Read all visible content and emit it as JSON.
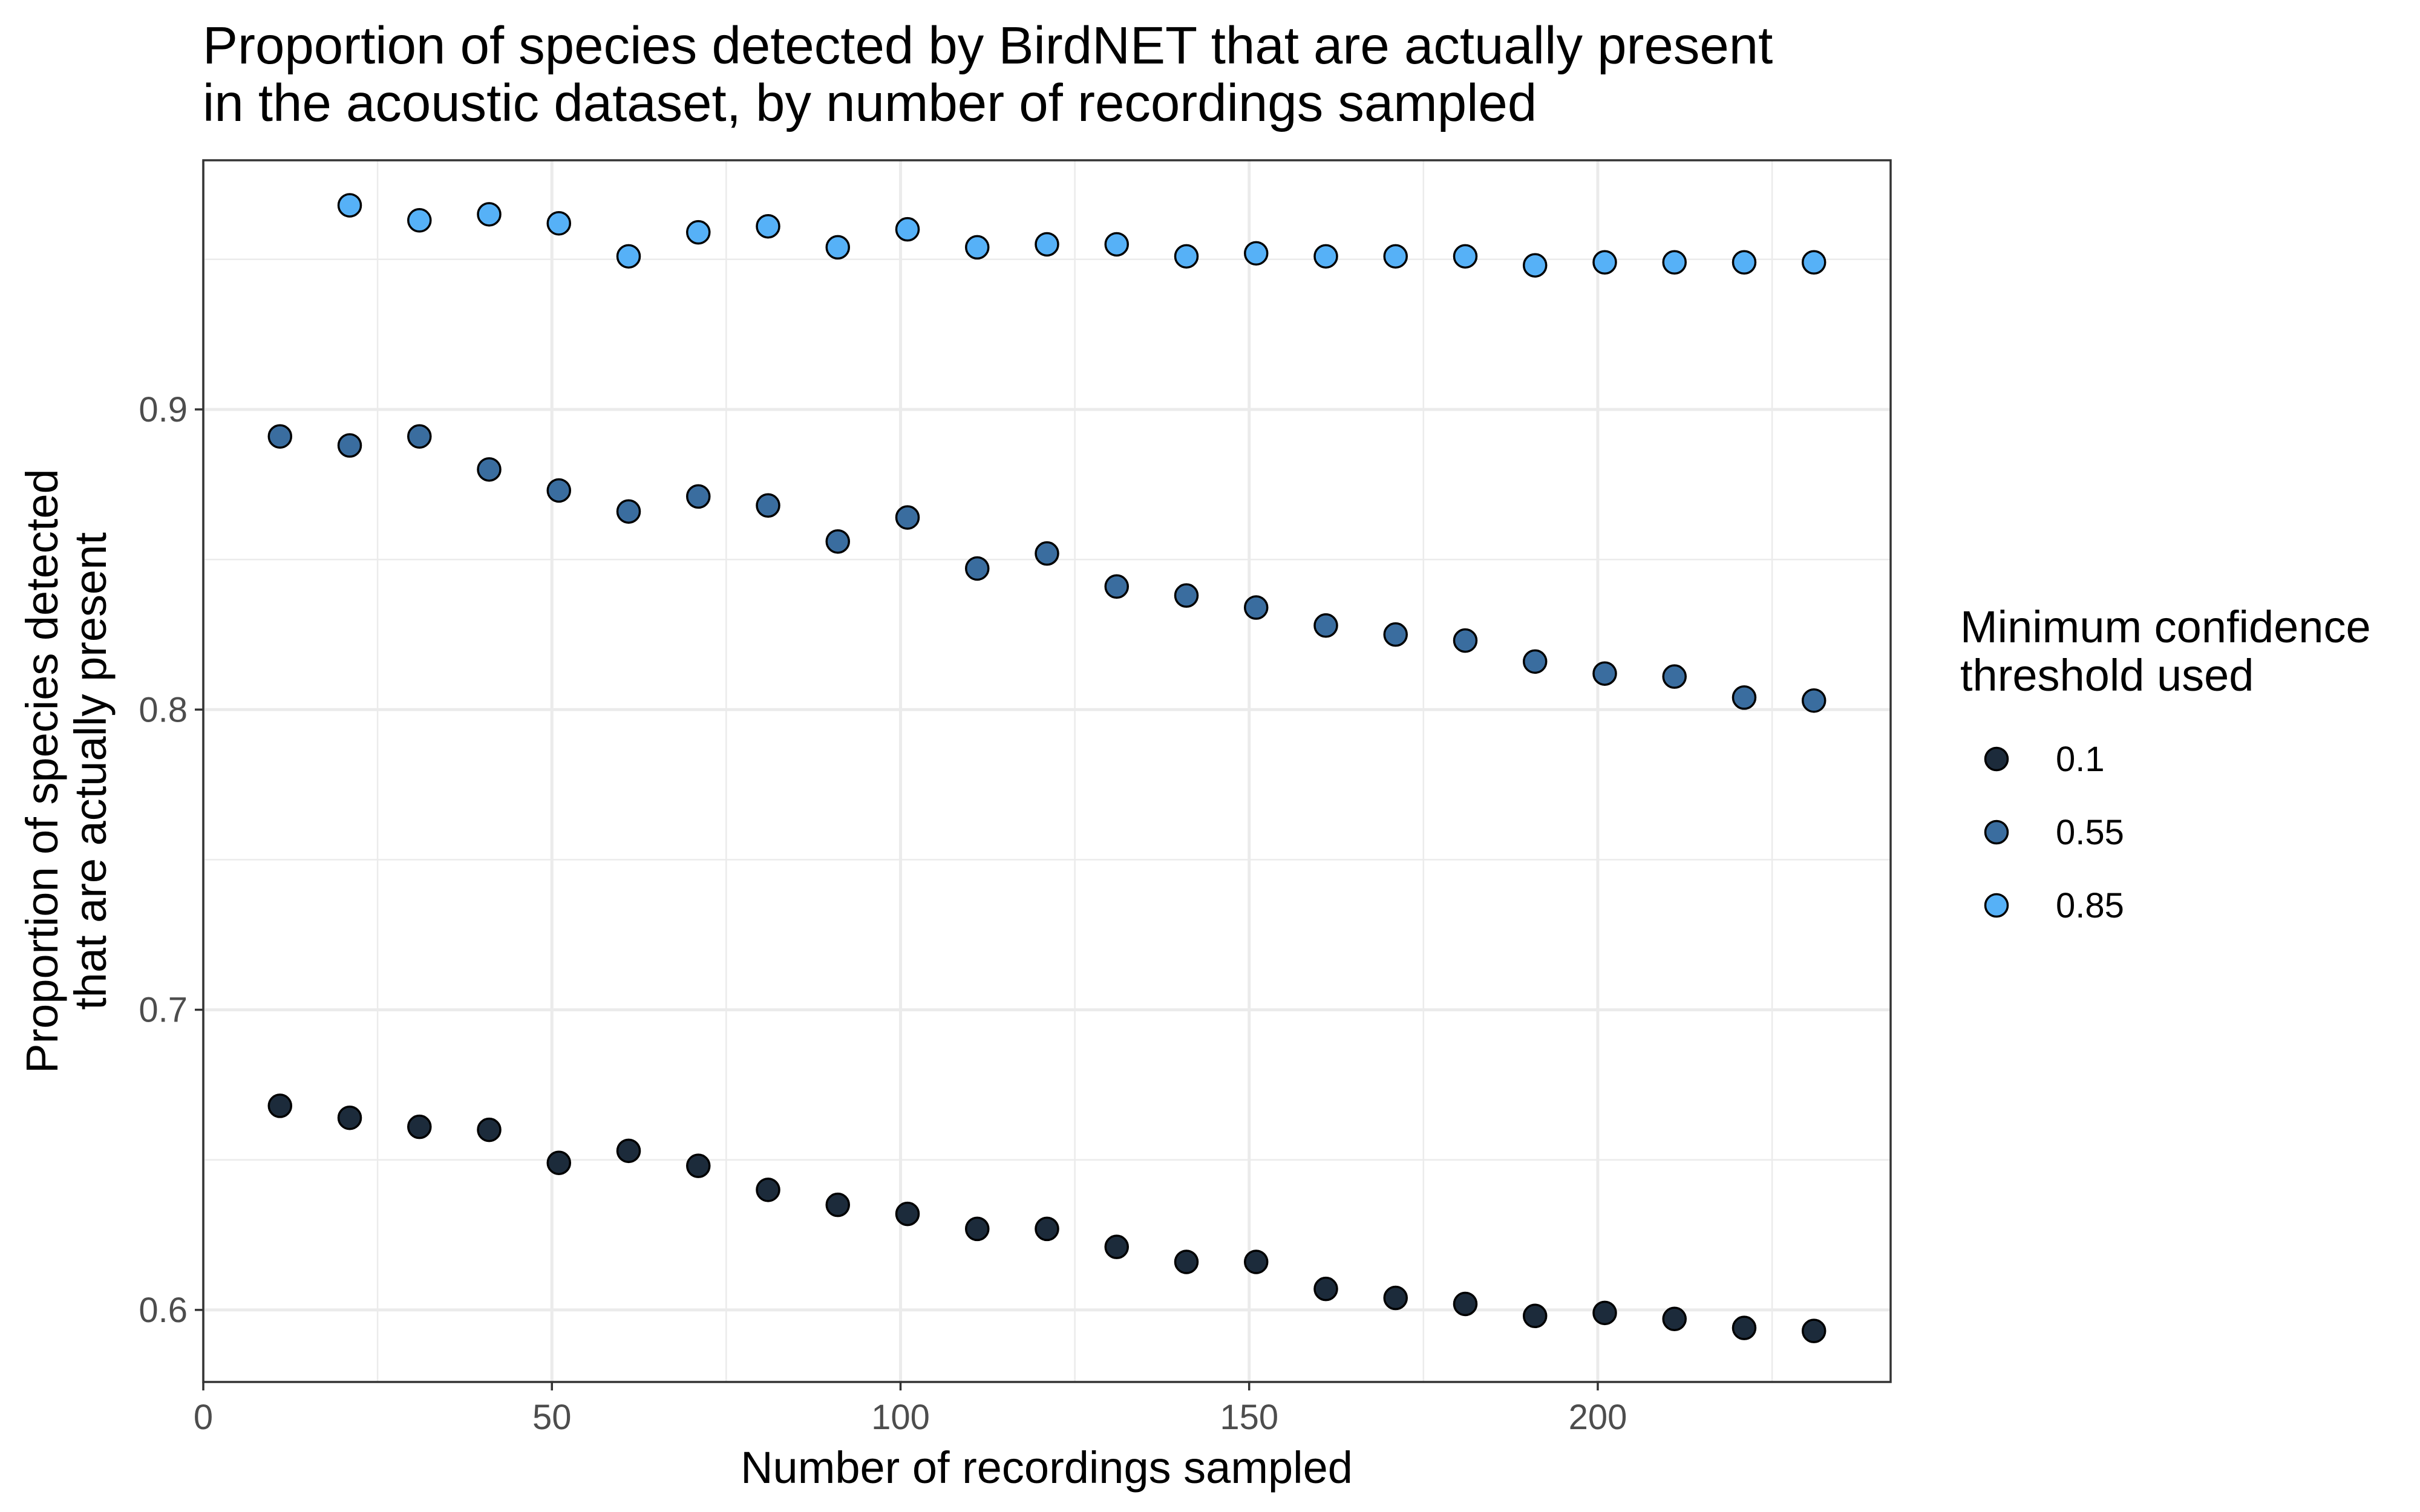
{
  "chart_data": {
    "type": "scatter",
    "title_lines": [
      "Proportion of species detected by BirdNET that are actually present",
      "in the acoustic dataset, by number of recordings sampled"
    ],
    "xlabel": "Number of recordings sampled",
    "ylabel_lines": [
      "Proportion of species detected",
      "that are actually present"
    ],
    "xlim": [
      0,
      242
    ],
    "ylim": [
      0.576,
      0.983
    ],
    "x_ticks": [
      0,
      50,
      100,
      150,
      200
    ],
    "x_minor_ticks": [
      25,
      75,
      125,
      175,
      225
    ],
    "y_ticks": [
      0.6,
      0.7,
      0.8,
      0.9
    ],
    "y_tick_labels": [
      "0.6",
      "0.7",
      "0.8",
      "0.9"
    ],
    "y_minor_ticks": [
      0.65,
      0.75,
      0.85,
      0.95
    ],
    "grid": true,
    "theme": "bw",
    "legend": {
      "title_lines": [
        "Minimum confidence",
        "threshold used"
      ],
      "position": "right"
    },
    "series": [
      {
        "name": "0.1",
        "color": "#1c2b3b",
        "points": [
          [
            11,
            0.668
          ],
          [
            21,
            0.664
          ],
          [
            31,
            0.661
          ],
          [
            41,
            0.66
          ],
          [
            51,
            0.649
          ],
          [
            61,
            0.653
          ],
          [
            71,
            0.648
          ],
          [
            81,
            0.64
          ],
          [
            91,
            0.635
          ],
          [
            101,
            0.632
          ],
          [
            111,
            0.627
          ],
          [
            121,
            0.627
          ],
          [
            131,
            0.621
          ],
          [
            141,
            0.616
          ],
          [
            151,
            0.616
          ],
          [
            161,
            0.607
          ],
          [
            171,
            0.604
          ],
          [
            181,
            0.602
          ],
          [
            191,
            0.598
          ],
          [
            201,
            0.599
          ],
          [
            211,
            0.597
          ],
          [
            221,
            0.594
          ],
          [
            231,
            0.593
          ]
        ]
      },
      {
        "name": "0.55",
        "color": "#3a6d9f",
        "points": [
          [
            11,
            0.891
          ],
          [
            21,
            0.888
          ],
          [
            31,
            0.891
          ],
          [
            41,
            0.88
          ],
          [
            51,
            0.873
          ],
          [
            61,
            0.866
          ],
          [
            71,
            0.871
          ],
          [
            81,
            0.868
          ],
          [
            91,
            0.856
          ],
          [
            101,
            0.864
          ],
          [
            111,
            0.847
          ],
          [
            121,
            0.852
          ],
          [
            131,
            0.841
          ],
          [
            141,
            0.838
          ],
          [
            151,
            0.834
          ],
          [
            161,
            0.828
          ],
          [
            171,
            0.825
          ],
          [
            181,
            0.823
          ],
          [
            191,
            0.816
          ],
          [
            201,
            0.812
          ],
          [
            211,
            0.811
          ],
          [
            221,
            0.804
          ],
          [
            231,
            0.803
          ]
        ]
      },
      {
        "name": "0.85",
        "color": "#56b1f7",
        "points": [
          [
            21,
            0.968
          ],
          [
            31,
            0.963
          ],
          [
            41,
            0.965
          ],
          [
            51,
            0.962
          ],
          [
            61,
            0.951
          ],
          [
            71,
            0.959
          ],
          [
            81,
            0.961
          ],
          [
            91,
            0.954
          ],
          [
            101,
            0.96
          ],
          [
            111,
            0.954
          ],
          [
            121,
            0.955
          ],
          [
            131,
            0.955
          ],
          [
            141,
            0.951
          ],
          [
            151,
            0.952
          ],
          [
            161,
            0.951
          ],
          [
            171,
            0.951
          ],
          [
            181,
            0.951
          ],
          [
            191,
            0.948
          ],
          [
            201,
            0.949
          ],
          [
            211,
            0.949
          ],
          [
            221,
            0.949
          ],
          [
            231,
            0.949
          ]
        ]
      }
    ]
  }
}
